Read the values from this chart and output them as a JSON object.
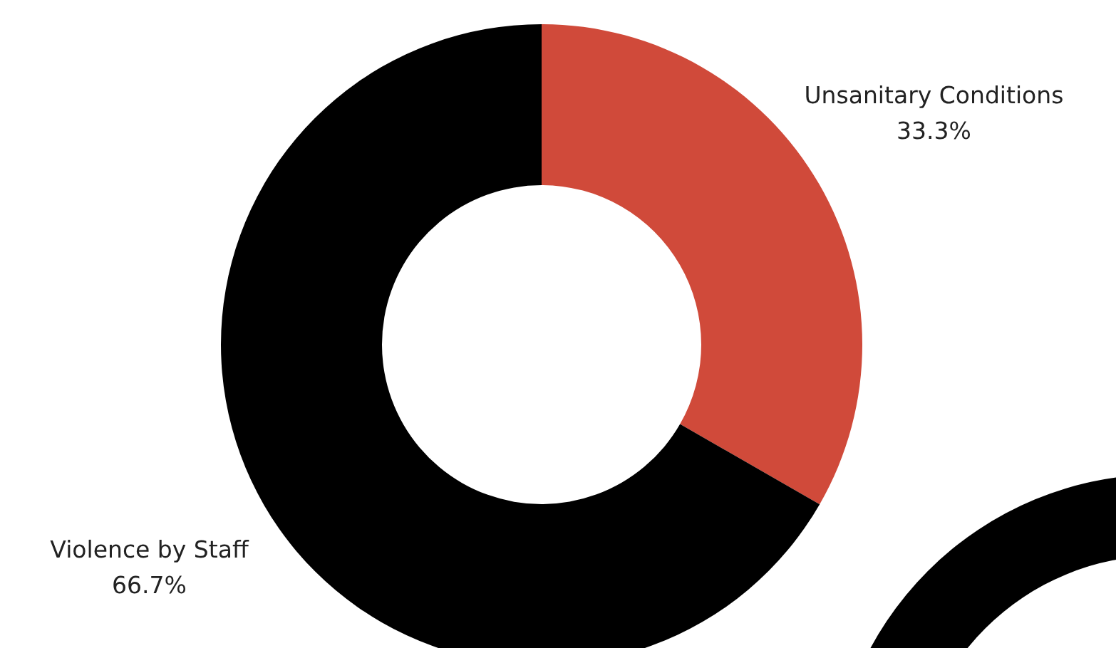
{
  "chart_data": {
    "type": "donut",
    "categories": [
      "Unsanitary Conditions",
      "Violence by Staff"
    ],
    "values": [
      33.3,
      66.7
    ],
    "colors": [
      "#d04a3a",
      "#000000"
    ],
    "value_labels": [
      "33.3%",
      "66.7%"
    ]
  }
}
